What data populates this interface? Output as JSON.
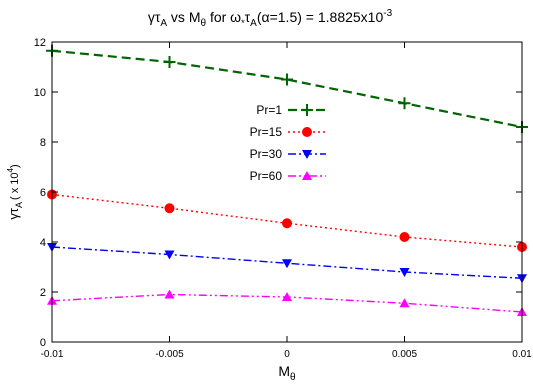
{
  "chart_data": {
    "type": "line",
    "title": {
      "lhs_base": "γτ",
      "lhs_sub": "A",
      "vs": " vs M",
      "vs_sub": "θ",
      "mid": " for  ω",
      "dot": "*",
      "tau": "τ",
      "tau_sub": "A",
      "tail": "(α=1.5) = 1.8825x10",
      "exp": "-3"
    },
    "xlabel": {
      "base": "M",
      "sub": "θ"
    },
    "ylabel": {
      "base": "γτ",
      "sub": "A",
      "tail": "( x 10",
      "exp": "4",
      "close": ")"
    },
    "xlim": [
      -0.01,
      0.01
    ],
    "ylim": [
      0,
      12
    ],
    "x": [
      -0.01,
      -0.005,
      0,
      0.005,
      0.01
    ],
    "xtick_labels": [
      "-0.01",
      "-0.005",
      "0",
      "0.005",
      "0.01"
    ],
    "yticks": [
      0,
      2,
      4,
      6,
      8,
      10,
      12
    ],
    "ytick_labels": [
      "0",
      "2",
      "4",
      "6",
      "8",
      "10",
      "12"
    ],
    "grid": false,
    "legend_position": "center",
    "series": [
      {
        "name": "Pr=1",
        "values": [
          11.65,
          11.2,
          10.5,
          9.55,
          8.6
        ],
        "color": "#006400",
        "marker": "plus",
        "dash": "9,5"
      },
      {
        "name": "Pr=15",
        "values": [
          5.9,
          5.35,
          4.75,
          4.2,
          3.8
        ],
        "color": "#ff0000",
        "marker": "circle",
        "dash": "2,3"
      },
      {
        "name": "Pr=30",
        "values": [
          3.8,
          3.5,
          3.15,
          2.8,
          2.55
        ],
        "color": "#0000ff",
        "marker": "tri-down",
        "dash": "8,3,2,3"
      },
      {
        "name": "Pr=60",
        "values": [
          1.65,
          1.9,
          1.8,
          1.55,
          1.2
        ],
        "color": "#ff00ff",
        "marker": "tri-up",
        "dash": "8,3,2,3,2,3"
      }
    ]
  }
}
